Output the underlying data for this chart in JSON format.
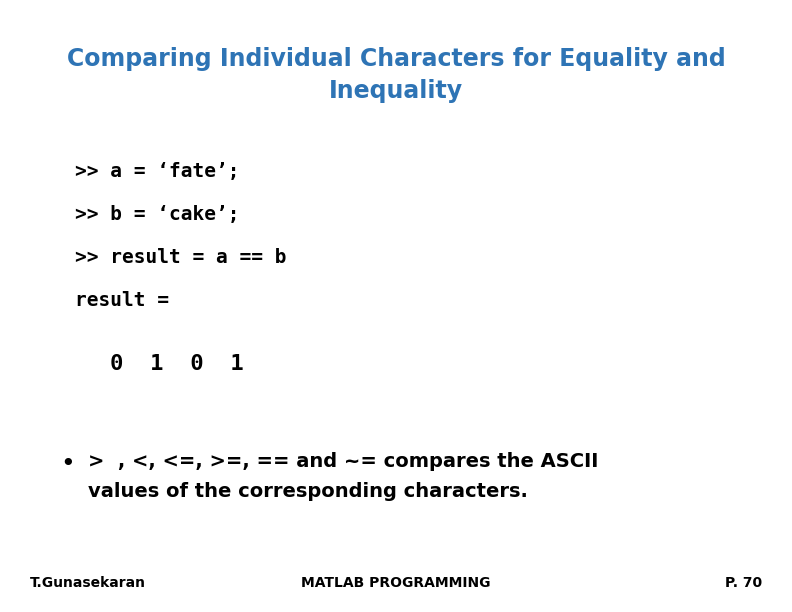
{
  "title_line1": "Comparing Individual Characters for Equality and",
  "title_line2": "Inequality",
  "title_color": "#2E74B5",
  "title_fontsize": 17,
  "code_lines": [
    ">> a = ‘fate’;",
    ">> b = ‘cake’;",
    ">> result = a == b",
    "result ="
  ],
  "code_result": "0  1  0  1",
  "bullet_line1": ">  , <, <=, >=, == and ~= compares the ASCII",
  "bullet_line2": "values of the corresponding characters.",
  "footer_left": "T.Gunasekaran",
  "footer_center": "MATLAB PROGRAMMING",
  "footer_right": "P. 70",
  "bg_color": "#ffffff",
  "text_color": "#000000",
  "code_fontsize": 14,
  "result_fontsize": 16,
  "bullet_fontsize": 14,
  "footer_fontsize": 10
}
